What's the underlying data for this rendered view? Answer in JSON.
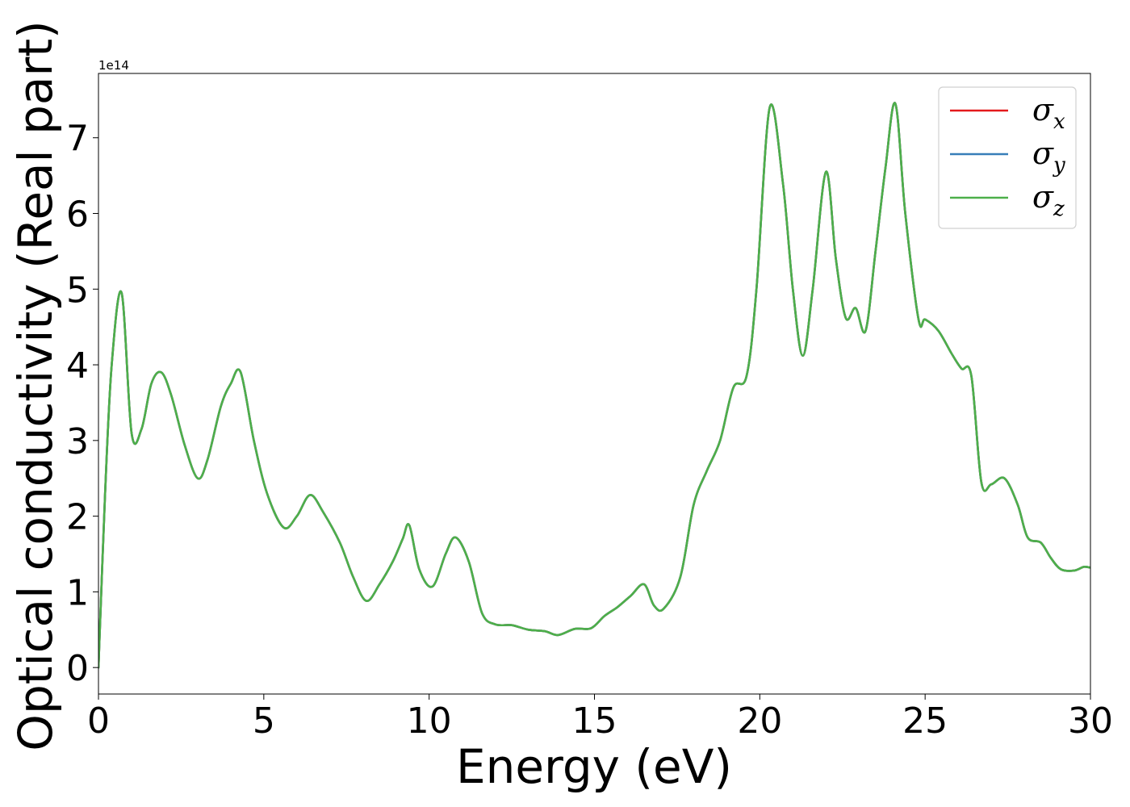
{
  "chart_data": {
    "type": "line",
    "xlabel": "Energy (eV)",
    "ylabel": "Optical conductivity (Real part)",
    "y_offset_text": "1e14",
    "y_multiplier": 100000000000000.0,
    "xlim": [
      0,
      30
    ],
    "ylim": [
      -0.35,
      7.85
    ],
    "xticks": [
      0,
      5,
      10,
      15,
      20,
      25,
      30
    ],
    "yticks": [
      0,
      1,
      2,
      3,
      4,
      5,
      6,
      7
    ],
    "grid": false,
    "legend_position": "top-right",
    "x": [
      0,
      0.2,
      0.4,
      0.7,
      1.0,
      1.3,
      1.6,
      1.9,
      2.2,
      2.6,
      3.0,
      3.3,
      3.7,
      4.0,
      4.3,
      4.7,
      5.1,
      5.6,
      6.0,
      6.4,
      6.8,
      7.3,
      7.7,
      8.1,
      8.5,
      8.9,
      9.2,
      9.4,
      9.7,
      10.1,
      10.5,
      10.8,
      11.2,
      11.6,
      12.0,
      12.5,
      13.0,
      13.5,
      13.9,
      14.4,
      14.9,
      15.3,
      15.7,
      16.1,
      16.5,
      16.8,
      17.1,
      17.6,
      18.0,
      18.4,
      18.8,
      19.2,
      19.6,
      19.9,
      20.3,
      20.7,
      21.0,
      21.3,
      21.6,
      22.0,
      22.3,
      22.6,
      22.9,
      23.2,
      23.5,
      23.8,
      24.1,
      24.4,
      24.8,
      25.0,
      25.4,
      25.8,
      26.1,
      26.4,
      26.7,
      27.0,
      27.4,
      27.8,
      28.1,
      28.5,
      28.8,
      29.1,
      29.5,
      29.8,
      30.0
    ],
    "series": [
      {
        "name": "x",
        "color": "#e41a1c",
        "values": [
          0.0,
          2.3,
          4.0,
          4.95,
          3.1,
          3.15,
          3.75,
          3.9,
          3.6,
          2.95,
          2.5,
          2.75,
          3.45,
          3.75,
          3.9,
          3.0,
          2.3,
          1.85,
          2.0,
          2.28,
          2.05,
          1.65,
          1.2,
          0.88,
          1.1,
          1.4,
          1.7,
          1.88,
          1.3,
          1.07,
          1.5,
          1.72,
          1.4,
          0.72,
          0.57,
          0.56,
          0.5,
          0.48,
          0.43,
          0.51,
          0.52,
          0.68,
          0.8,
          0.95,
          1.1,
          0.82,
          0.78,
          1.2,
          2.15,
          2.6,
          3.0,
          3.7,
          3.85,
          5.0,
          7.4,
          6.4,
          5.0,
          4.12,
          5.0,
          6.55,
          5.4,
          4.62,
          4.75,
          4.45,
          5.5,
          6.6,
          7.45,
          6.0,
          4.6,
          4.6,
          4.45,
          4.15,
          3.95,
          3.85,
          2.45,
          2.42,
          2.5,
          2.15,
          1.72,
          1.65,
          1.45,
          1.3,
          1.28,
          1.33,
          1.32
        ]
      },
      {
        "name": "y",
        "color": "#377eb8",
        "values": [
          0.0,
          2.3,
          4.0,
          4.95,
          3.1,
          3.15,
          3.75,
          3.9,
          3.6,
          2.95,
          2.5,
          2.75,
          3.45,
          3.75,
          3.9,
          3.0,
          2.3,
          1.85,
          2.0,
          2.28,
          2.05,
          1.65,
          1.2,
          0.88,
          1.1,
          1.4,
          1.7,
          1.88,
          1.3,
          1.07,
          1.5,
          1.72,
          1.4,
          0.72,
          0.57,
          0.56,
          0.5,
          0.48,
          0.43,
          0.51,
          0.52,
          0.68,
          0.8,
          0.95,
          1.1,
          0.82,
          0.78,
          1.2,
          2.15,
          2.6,
          3.0,
          3.7,
          3.85,
          5.0,
          7.4,
          6.4,
          5.0,
          4.12,
          5.0,
          6.55,
          5.4,
          4.62,
          4.75,
          4.45,
          5.5,
          6.6,
          7.45,
          6.0,
          4.6,
          4.6,
          4.45,
          4.15,
          3.95,
          3.85,
          2.45,
          2.42,
          2.5,
          2.15,
          1.72,
          1.65,
          1.45,
          1.3,
          1.28,
          1.33,
          1.32
        ]
      },
      {
        "name": "z",
        "color": "#4daf4a",
        "values": [
          0.0,
          2.3,
          4.0,
          4.95,
          3.1,
          3.15,
          3.75,
          3.9,
          3.6,
          2.95,
          2.5,
          2.75,
          3.45,
          3.75,
          3.9,
          3.0,
          2.3,
          1.85,
          2.0,
          2.28,
          2.05,
          1.65,
          1.2,
          0.88,
          1.1,
          1.4,
          1.7,
          1.88,
          1.3,
          1.07,
          1.5,
          1.72,
          1.4,
          0.72,
          0.57,
          0.56,
          0.5,
          0.48,
          0.43,
          0.51,
          0.52,
          0.68,
          0.8,
          0.95,
          1.1,
          0.82,
          0.78,
          1.2,
          2.15,
          2.6,
          3.0,
          3.7,
          3.85,
          5.0,
          7.4,
          6.4,
          5.0,
          4.12,
          5.0,
          6.55,
          5.4,
          4.62,
          4.75,
          4.45,
          5.5,
          6.6,
          7.45,
          6.0,
          4.6,
          4.6,
          4.45,
          4.15,
          3.95,
          3.85,
          2.45,
          2.42,
          2.5,
          2.15,
          1.72,
          1.65,
          1.45,
          1.3,
          1.28,
          1.33,
          1.32
        ]
      }
    ],
    "legend": [
      {
        "symbol": "σ",
        "subscript": "x",
        "color": "#e41a1c"
      },
      {
        "symbol": "σ",
        "subscript": "y",
        "color": "#377eb8"
      },
      {
        "symbol": "σ",
        "subscript": "z",
        "color": "#4daf4a"
      }
    ]
  }
}
